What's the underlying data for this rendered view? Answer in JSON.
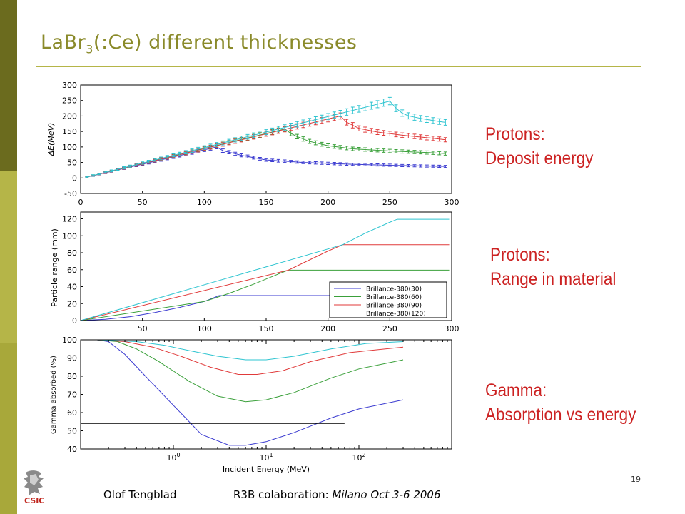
{
  "slide": {
    "title_main": "LaBr",
    "title_sub": "3",
    "title_rest": "(:Ce) different thicknesses",
    "page_number": "19",
    "accent_colors": [
      "#6b6b1e",
      "#b5b548",
      "#8a8a2a"
    ]
  },
  "annotations": [
    {
      "line1": "Protons:",
      "line2": "Deposit energy"
    },
    {
      "line1": "Protons:",
      "line2": "Range in material"
    },
    {
      "line1": "Gamma:",
      "line2": "Absorption vs energy"
    }
  ],
  "footer": {
    "author": "Olof Tengblad",
    "collab": "R3B colaboration: ",
    "event": "Milano  Oct 3-6  2006",
    "logo_text": "CSIC"
  },
  "series_colors": [
    "#3a3ad0",
    "#3aa03a",
    "#e03a3a",
    "#2ec4d0"
  ],
  "chart_data": [
    {
      "type": "line",
      "ylabel": "ΔE(MeV)",
      "xlim": [
        0,
        300
      ],
      "ylim": [
        -50,
        300
      ],
      "xticks": [
        0,
        50,
        100,
        150,
        200,
        250,
        300
      ],
      "yticks": [
        -50,
        0,
        50,
        100,
        150,
        200,
        250,
        300
      ],
      "error_bars": true,
      "series": [
        {
          "x": [
            2,
            110,
            115,
            130,
            150,
            180,
            220,
            260,
            298
          ],
          "y": [
            0,
            100,
            88,
            73,
            58,
            50,
            44,
            40,
            37
          ]
        },
        {
          "x": [
            2,
            165,
            172,
            185,
            200,
            220,
            250,
            280,
            298
          ],
          "y": [
            0,
            158,
            138,
            118,
            104,
            94,
            87,
            82,
            78
          ]
        },
        {
          "x": [
            2,
            210,
            215,
            225,
            240,
            260,
            280,
            298
          ],
          "y": [
            0,
            200,
            180,
            160,
            148,
            138,
            130,
            122
          ]
        },
        {
          "x": [
            2,
            250,
            255,
            262,
            275,
            290,
            298
          ],
          "y": [
            0,
            248,
            225,
            203,
            192,
            182,
            178
          ]
        }
      ]
    },
    {
      "type": "line",
      "ylabel": "Particle range (mm)",
      "xlim": [
        0,
        300
      ],
      "ylim": [
        0,
        128
      ],
      "xticks": [
        50,
        100,
        150,
        200,
        250,
        300
      ],
      "yticks": [
        0,
        20,
        40,
        60,
        80,
        100,
        120
      ],
      "legend_position": "bottom-right",
      "series": [
        {
          "name": "Brillance-380(30)",
          "x": [
            0,
            20,
            40,
            60,
            80,
            100,
            112,
            210
          ],
          "y": [
            0,
            1.5,
            4.5,
            9.5,
            15.5,
            22.5,
            29.5,
            29.5
          ]
        },
        {
          "name": "Brillance-380(60)",
          "x": [
            0,
            100,
            120,
            140,
            160,
            168,
            298
          ],
          "y": [
            0,
            22.5,
            32,
            43,
            55,
            59.5,
            59.5
          ]
        },
        {
          "name": "Brillance-380(90)",
          "x": [
            0,
            168,
            180,
            200,
            212,
            298
          ],
          "y": [
            0,
            59.5,
            68,
            82,
            89.5,
            89.5
          ]
        },
        {
          "name": "Brillance-380(120)",
          "x": [
            0,
            212,
            230,
            250,
            256,
            298
          ],
          "y": [
            0,
            89.5,
            103,
            116,
            119.5,
            119.5
          ]
        }
      ]
    },
    {
      "type": "line",
      "xlabel": "Incident Energy (MeV)",
      "ylabel": "Gamma absorbed (%)",
      "xscale": "log",
      "xlim": [
        0.1,
        1000
      ],
      "ylim": [
        40,
        100
      ],
      "xtick_labels": [
        "10^0",
        "10^1",
        "10^2"
      ],
      "yticks": [
        40,
        50,
        60,
        70,
        80,
        90,
        100
      ],
      "reference_line": {
        "y": 54,
        "x": [
          0.1,
          70
        ]
      },
      "series": [
        {
          "x": [
            0.15,
            0.2,
            0.3,
            0.5,
            1,
            2,
            4,
            6,
            10,
            20,
            50,
            100,
            300
          ],
          "y": [
            100,
            99,
            92,
            80,
            64,
            48,
            42,
            42,
            44,
            49,
            57,
            62,
            67
          ]
        },
        {
          "x": [
            0.15,
            0.25,
            0.4,
            0.7,
            1.5,
            3,
            6,
            10,
            20,
            50,
            100,
            300
          ],
          "y": [
            100,
            99,
            95,
            88,
            77,
            69,
            66,
            67,
            71,
            79,
            84,
            89
          ]
        },
        {
          "x": [
            0.15,
            0.3,
            0.6,
            1.2,
            2.5,
            5,
            8,
            15,
            30,
            80,
            300
          ],
          "y": [
            100,
            99,
            96,
            91,
            85,
            81,
            81,
            83,
            88,
            93,
            96
          ]
        },
        {
          "x": [
            0.15,
            0.4,
            0.8,
            1.5,
            3,
            6,
            10,
            20,
            50,
            120,
            300
          ],
          "y": [
            100,
            99,
            97,
            94,
            91,
            89,
            89,
            91,
            95,
            98,
            99
          ]
        }
      ]
    }
  ]
}
